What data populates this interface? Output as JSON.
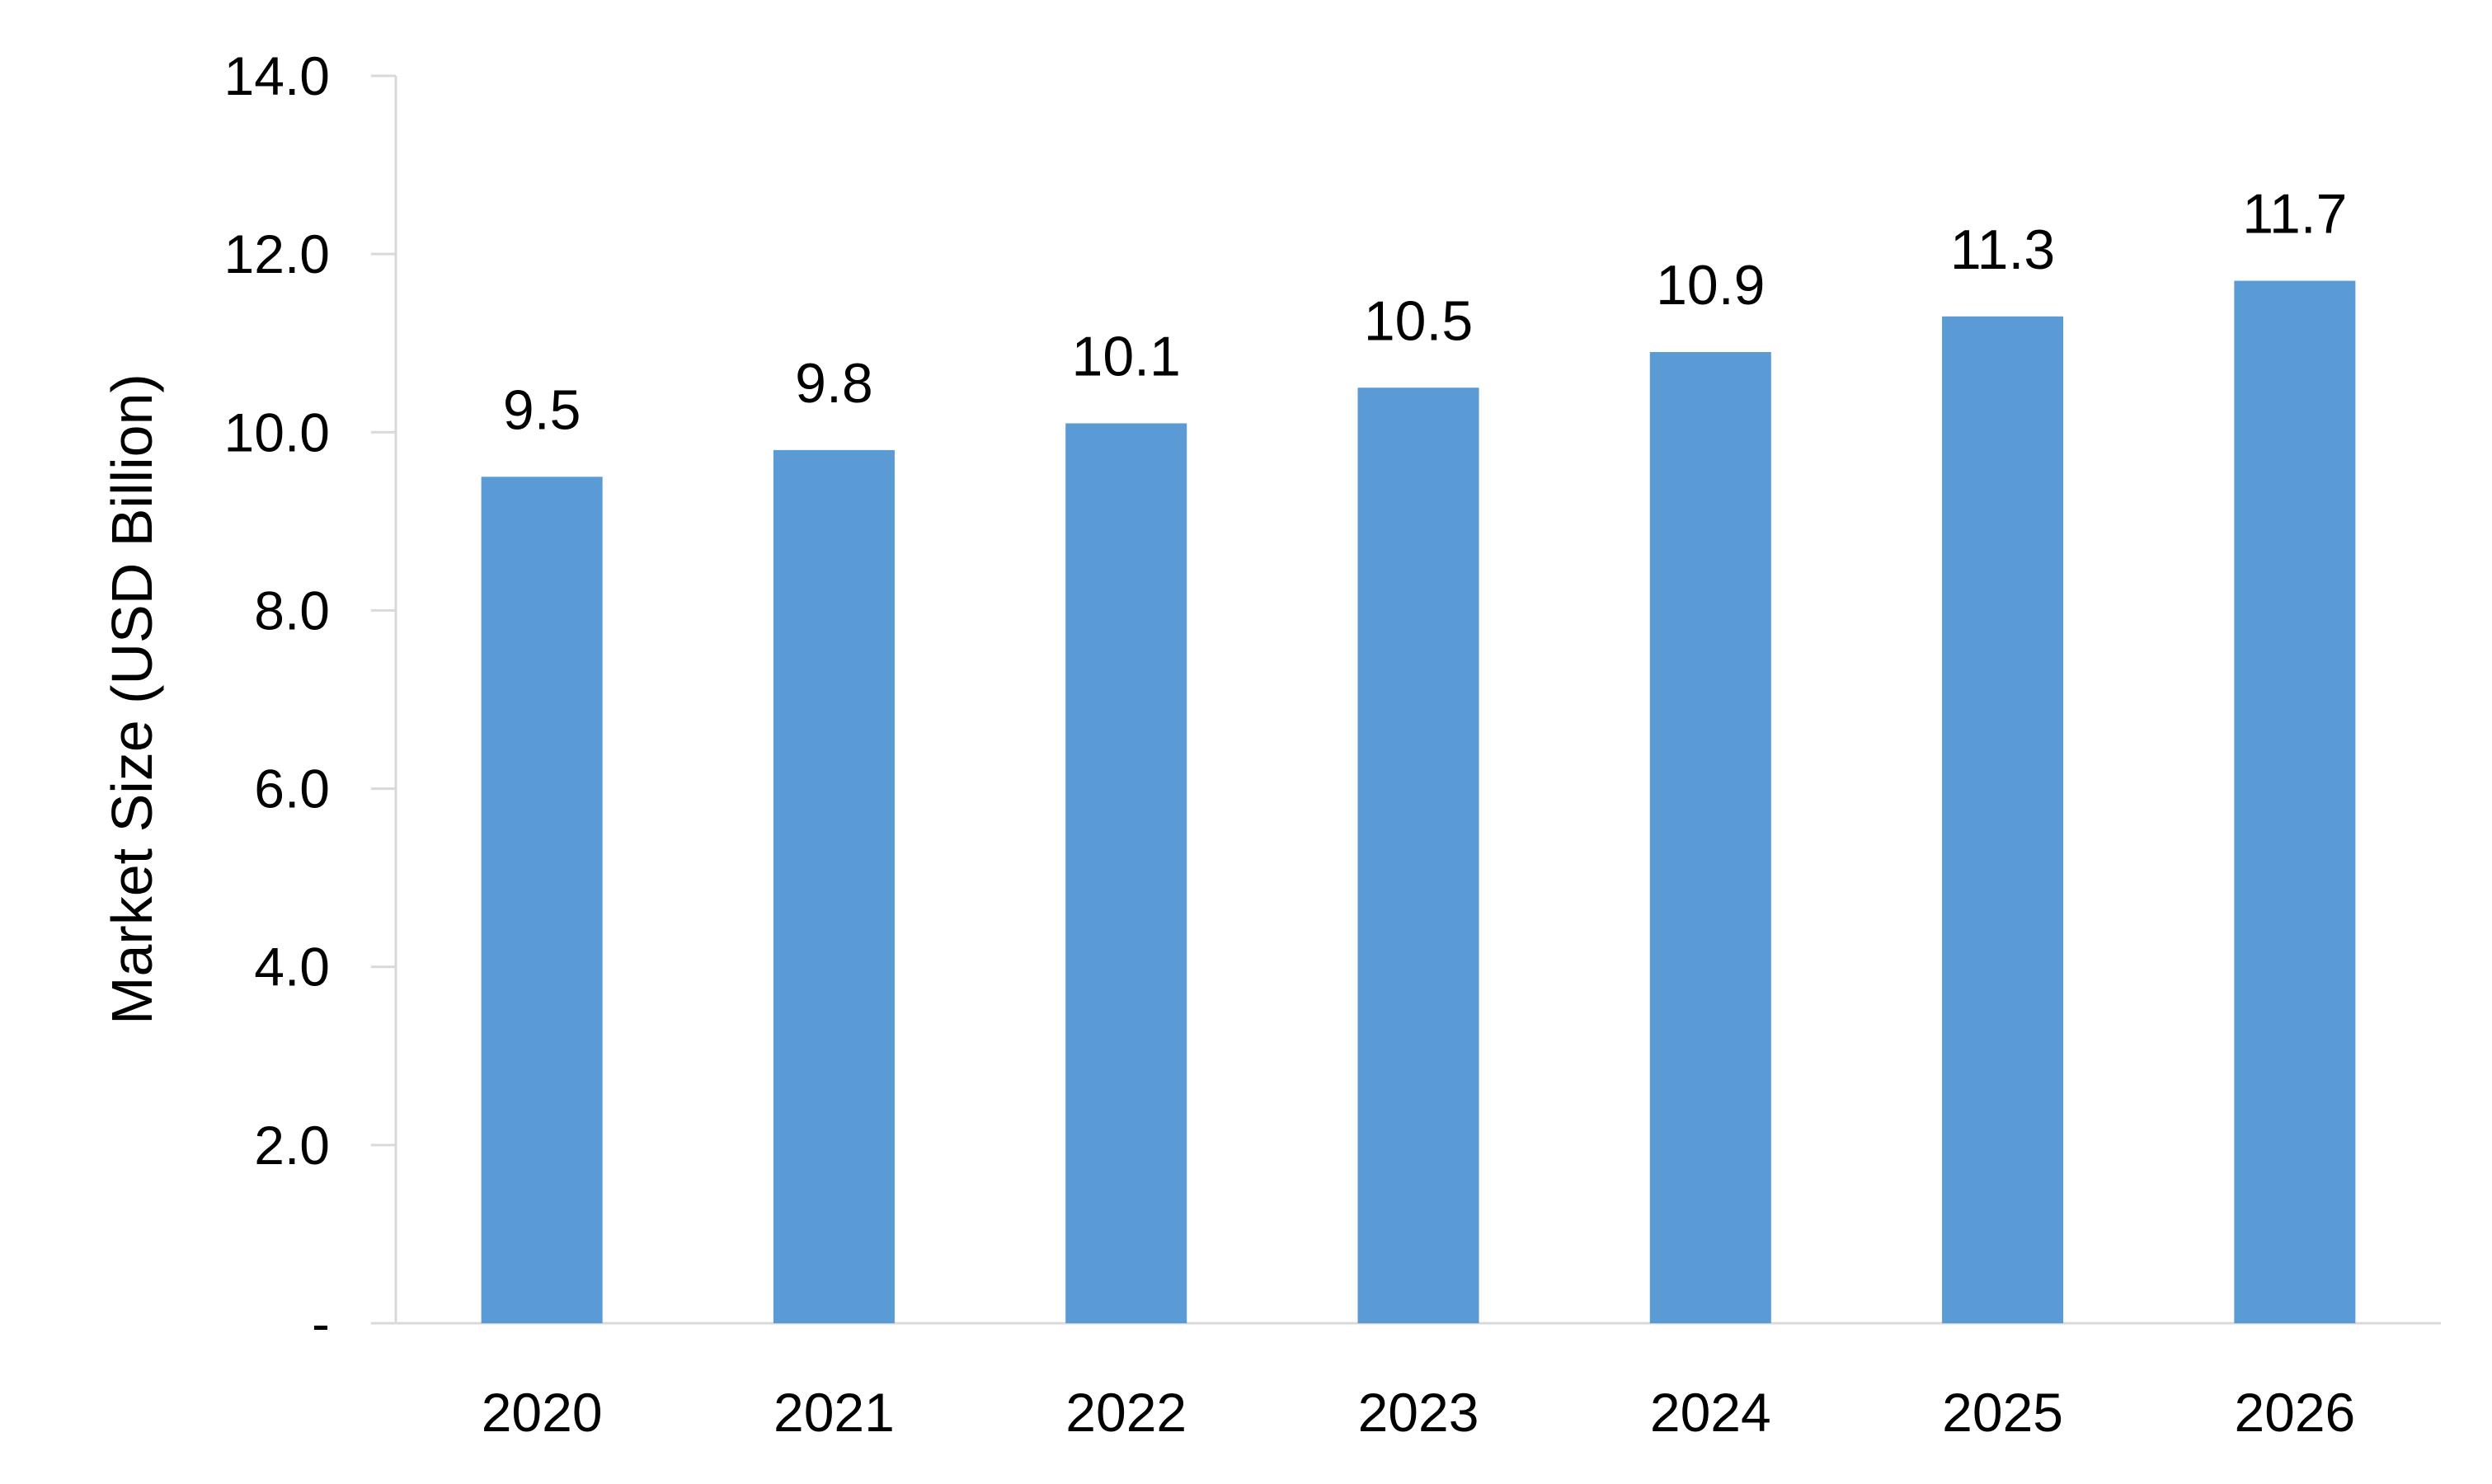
{
  "chart_data": {
    "type": "bar",
    "categories": [
      "2020",
      "2021",
      "2022",
      "2023",
      "2024",
      "2025",
      "2026"
    ],
    "values": [
      9.5,
      9.8,
      10.1,
      10.5,
      10.9,
      11.3,
      11.7
    ],
    "data_labels": [
      "9.5",
      "9.8",
      "10.1",
      "10.5",
      "10.9",
      "11.3",
      "11.7"
    ],
    "title": "",
    "xlabel": "",
    "ylabel": "Market Size (USD Billion)",
    "ylim": [
      0,
      14
    ],
    "y_ticks": [
      0,
      2,
      4,
      6,
      8,
      10,
      12,
      14
    ],
    "y_tick_labels": [
      "-",
      "2.0",
      "4.0",
      "6.0",
      "8.0",
      "10.0",
      "12.0",
      "14.0"
    ],
    "grid": false,
    "legend": "none",
    "colors": {
      "bar": "#5b9bd5",
      "axis": "#d9d9d9",
      "text": "#000000"
    }
  }
}
